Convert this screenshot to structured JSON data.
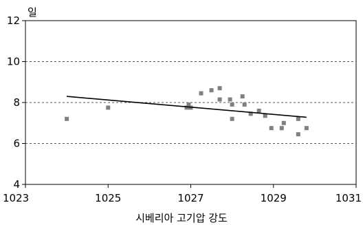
{
  "chart_data": {
    "type": "scatter",
    "title": "",
    "xlabel": "시베리아 고기압 강도",
    "ylabel": "일",
    "xlim": [
      1023,
      1031
    ],
    "ylim": [
      4,
      12
    ],
    "xticks": [
      "1023",
      "1025",
      "1027",
      "1029",
      "1031"
    ],
    "yticks": [
      "4",
      "6",
      "8",
      "10",
      "12"
    ],
    "grid": "horizontal-dotted",
    "marker_color": "#808080",
    "line_color": "#000000",
    "series": [
      {
        "points": [
          {
            "x": 1024.0,
            "y": 7.2
          },
          {
            "x": 1025.0,
            "y": 7.75
          },
          {
            "x": 1026.9,
            "y": 7.75
          },
          {
            "x": 1026.95,
            "y": 7.9
          },
          {
            "x": 1027.0,
            "y": 7.75
          },
          {
            "x": 1027.25,
            "y": 8.45
          },
          {
            "x": 1027.5,
            "y": 8.6
          },
          {
            "x": 1027.7,
            "y": 8.7
          },
          {
            "x": 1027.7,
            "y": 8.15
          },
          {
            "x": 1027.95,
            "y": 8.15
          },
          {
            "x": 1028.0,
            "y": 7.9
          },
          {
            "x": 1028.0,
            "y": 7.2
          },
          {
            "x": 1028.25,
            "y": 8.3
          },
          {
            "x": 1028.3,
            "y": 7.9
          },
          {
            "x": 1028.45,
            "y": 7.45
          },
          {
            "x": 1028.65,
            "y": 7.6
          },
          {
            "x": 1028.8,
            "y": 7.35
          },
          {
            "x": 1028.95,
            "y": 6.75
          },
          {
            "x": 1029.2,
            "y": 6.75
          },
          {
            "x": 1029.25,
            "y": 7.0
          },
          {
            "x": 1029.6,
            "y": 7.2
          },
          {
            "x": 1029.6,
            "y": 6.45
          },
          {
            "x": 1029.8,
            "y": 6.75
          }
        ]
      }
    ],
    "trendline": {
      "x": [
        1024.0,
        1029.8
      ],
      "y": [
        8.3,
        7.28
      ]
    }
  }
}
